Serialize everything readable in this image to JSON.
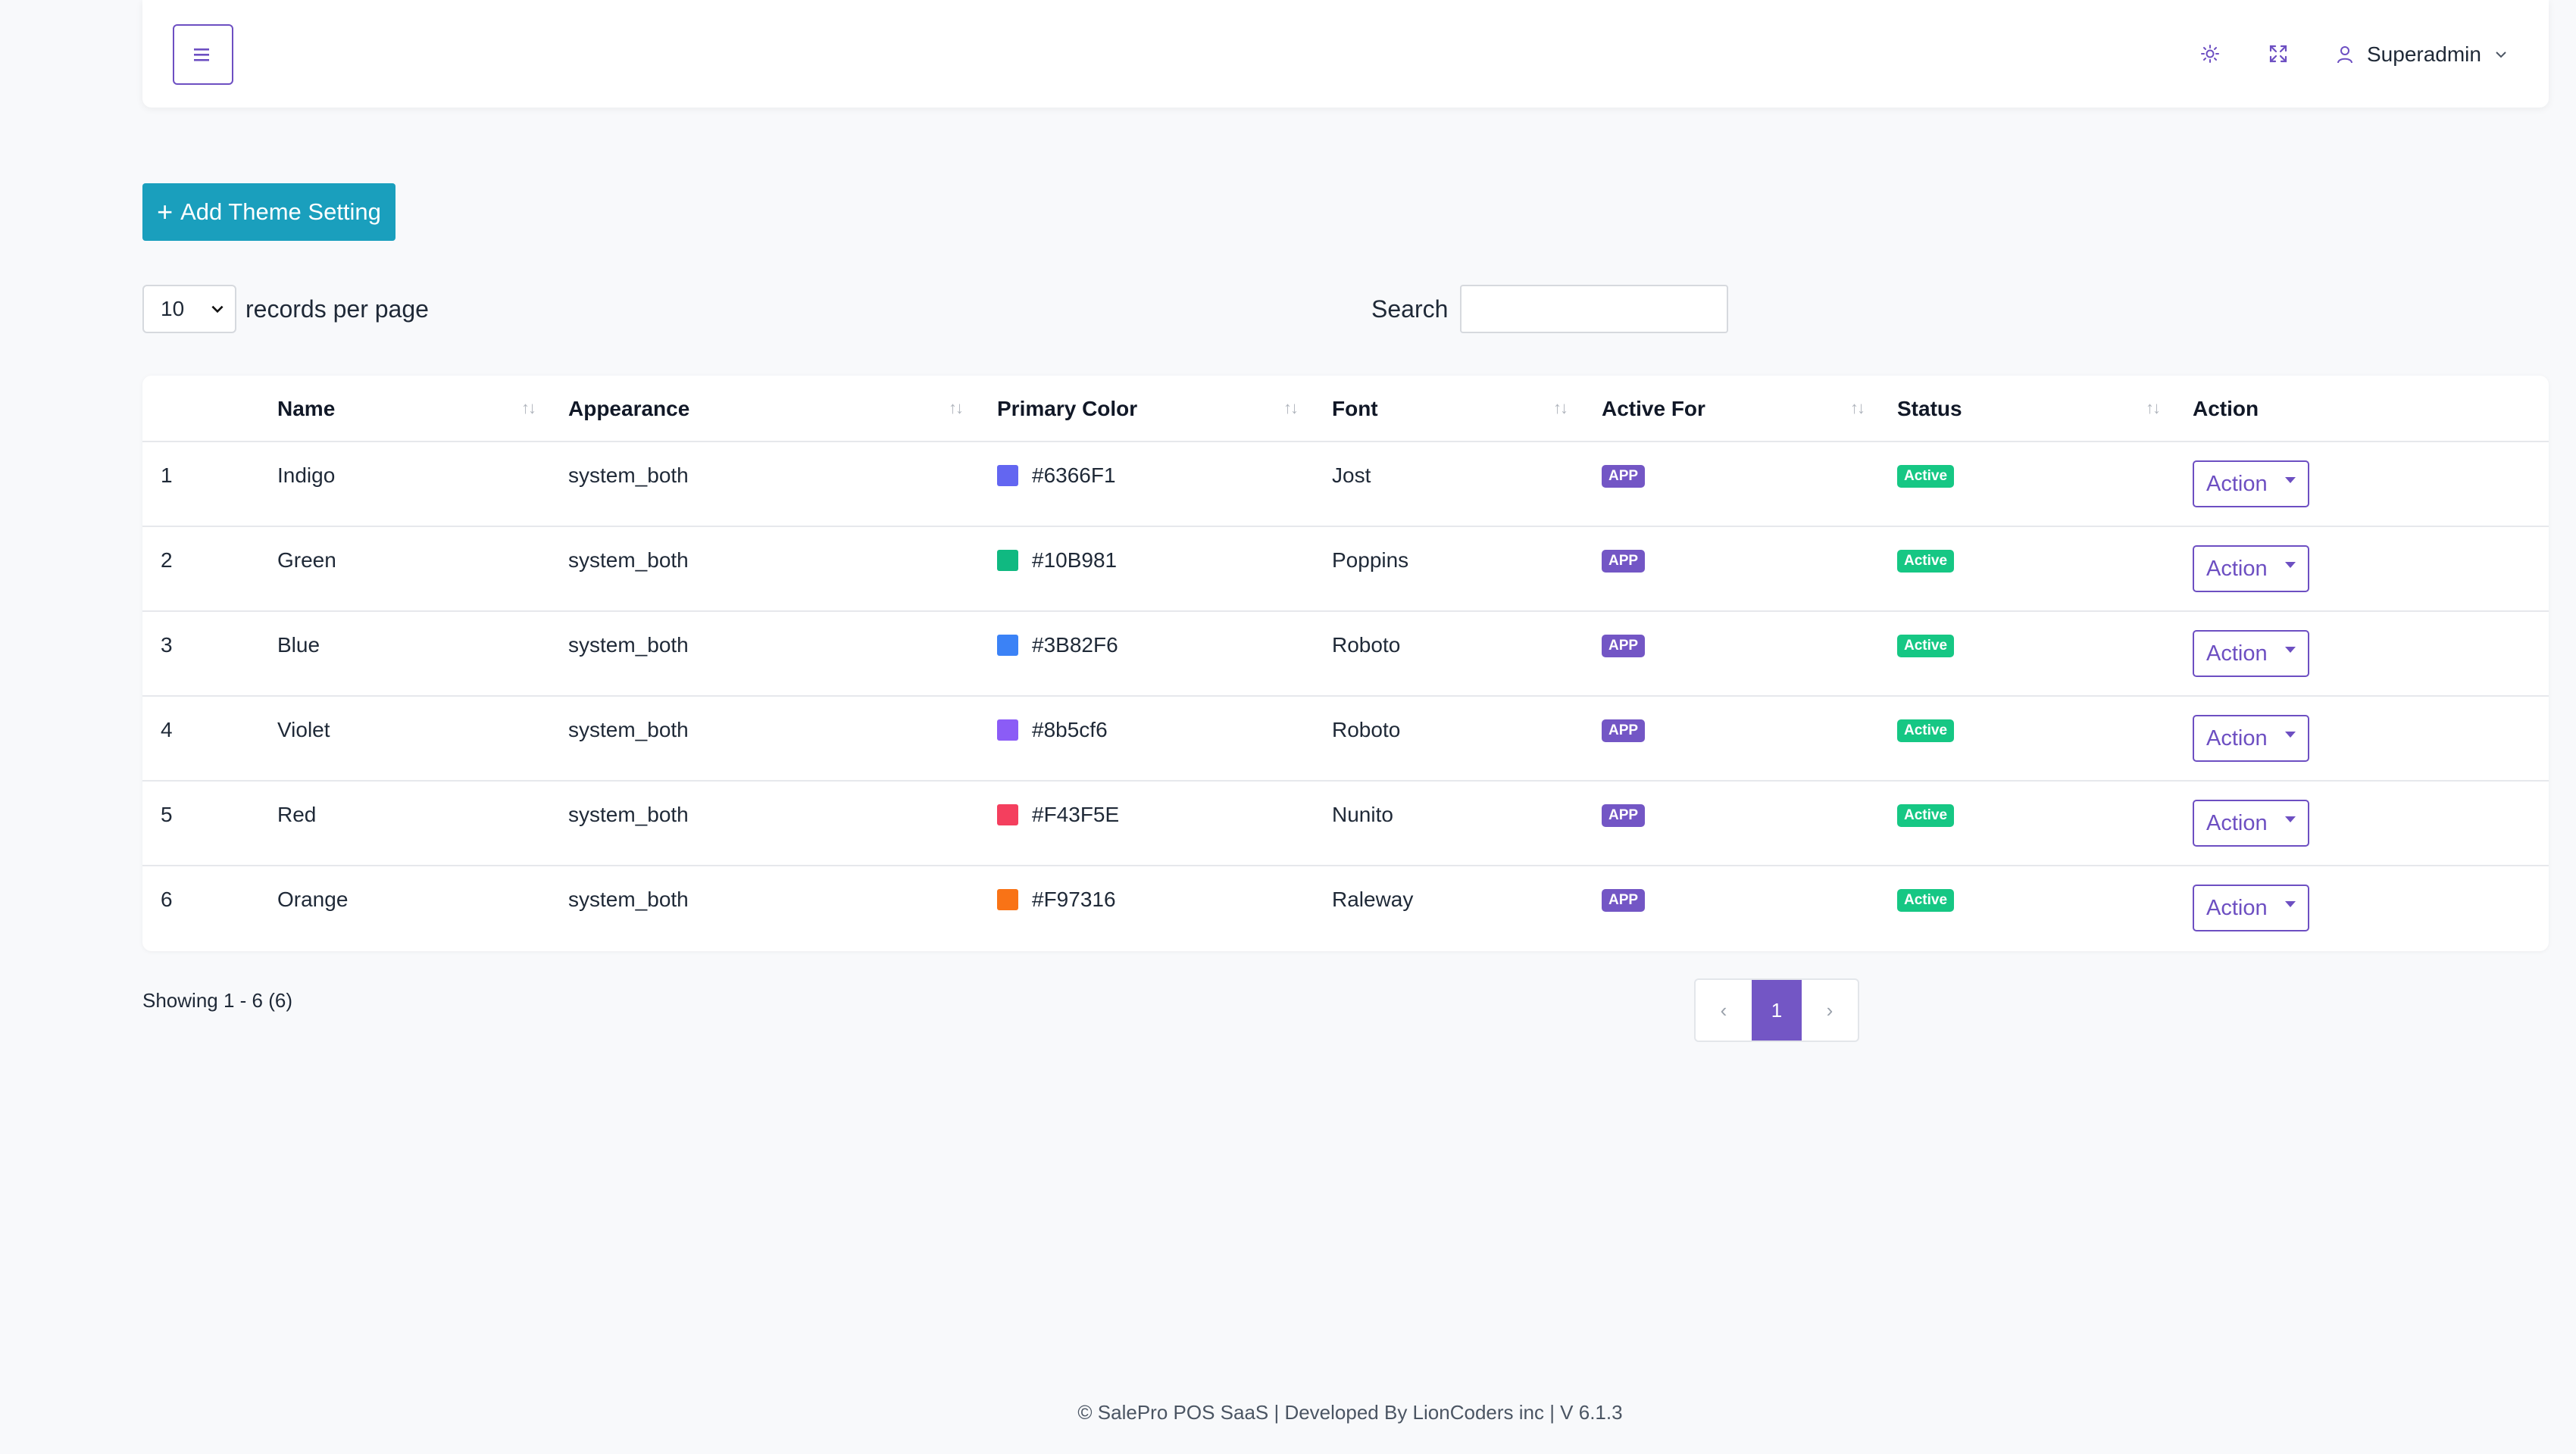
{
  "header": {
    "menu_icon": "hamburger-icon",
    "theme_icon": "sun-icon",
    "fullscreen_icon": "expand-icon",
    "user_icon": "user-icon",
    "user_name": "Superadmin"
  },
  "toolbar": {
    "add_label": "Add Theme Setting",
    "records_value": "10",
    "records_label": "records per page",
    "search_label": "Search",
    "search_value": ""
  },
  "table": {
    "headers": {
      "name": "Name",
      "appearance": "Appearance",
      "primary_color": "Primary Color",
      "font": "Font",
      "active_for": "Active For",
      "status": "Status",
      "action": "Action"
    },
    "rows": [
      {
        "idx": "1",
        "name": "Indigo",
        "appearance": "system_both",
        "color": "#6366F1",
        "font": "Jost",
        "active_for": "APP",
        "status": "Active",
        "action": "Action"
      },
      {
        "idx": "2",
        "name": "Green",
        "appearance": "system_both",
        "color": "#10B981",
        "font": "Poppins",
        "active_for": "APP",
        "status": "Active",
        "action": "Action"
      },
      {
        "idx": "3",
        "name": "Blue",
        "appearance": "system_both",
        "color": "#3B82F6",
        "font": "Roboto",
        "active_for": "APP",
        "status": "Active",
        "action": "Action"
      },
      {
        "idx": "4",
        "name": "Violet",
        "appearance": "system_both",
        "color": "#8b5cf6",
        "font": "Roboto",
        "active_for": "APP",
        "status": "Active",
        "action": "Action"
      },
      {
        "idx": "5",
        "name": "Red",
        "appearance": "system_both",
        "color": "#F43F5E",
        "font": "Nunito",
        "active_for": "APP",
        "status": "Active",
        "action": "Action"
      },
      {
        "idx": "6",
        "name": "Orange",
        "appearance": "system_both",
        "color": "#F97316",
        "font": "Raleway",
        "active_for": "APP",
        "status": "Active",
        "action": "Action"
      }
    ]
  },
  "pagination": {
    "showing": "Showing 1 - 6 (6)",
    "prev": "‹",
    "current": "1",
    "next": "›"
  },
  "footer": {
    "text": "© SalePro POS SaaS | Developed By LionCoders inc | V 6.1.3"
  },
  "colors": {
    "accent": "#7356c5",
    "add_button": "#1a9fbd",
    "active_badge": "#16c784"
  }
}
